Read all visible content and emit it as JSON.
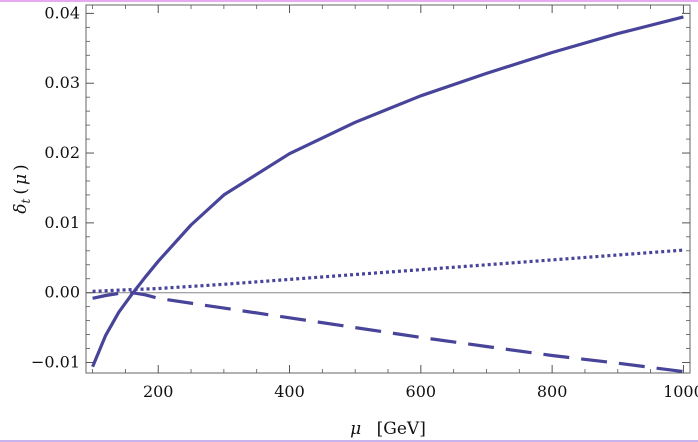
{
  "chart_data": {
    "type": "line",
    "xlabel": {
      "symbol": "μ",
      "unit": "[GeV]"
    },
    "ylabel": {
      "symbol": "δ",
      "subscript": "t",
      "open": "(",
      "arg": "μ",
      "close": ")"
    },
    "xlim": [
      90,
      1010
    ],
    "ylim": [
      -0.0115,
      0.0412
    ],
    "x_ticks": [
      200,
      400,
      600,
      800,
      1000
    ],
    "y_ticks": [
      -0.01,
      0.0,
      0.01,
      0.02,
      0.03,
      0.04
    ],
    "x_tick_labels": [
      "200",
      "400",
      "600",
      "800",
      "1000"
    ],
    "y_tick_labels": [
      "−0.01",
      "0.00",
      "0.01",
      "0.02",
      "0.03",
      "0.04"
    ],
    "grid": false,
    "legend": "none",
    "zero_line": true,
    "colors": {
      "series": "#47449a",
      "axes": "#555555",
      "zero_line": "#888888",
      "frame": "#666666"
    },
    "series": [
      {
        "style": "solid",
        "x": [
          100,
          120,
          140,
          160,
          180,
          200,
          250,
          300,
          400,
          500,
          600,
          700,
          800,
          900,
          1000
        ],
        "y": [
          -0.0106,
          -0.0061,
          -0.0028,
          -0.0002,
          0.0022,
          0.0045,
          0.0097,
          0.014,
          0.0199,
          0.0244,
          0.0282,
          0.0314,
          0.0344,
          0.0371,
          0.0395
        ]
      },
      {
        "style": "dashed",
        "x": [
          100,
          120,
          140,
          160,
          180,
          200,
          300,
          400,
          500,
          600,
          700,
          800,
          900,
          1000
        ],
        "y": [
          -0.0008,
          -0.0004,
          -0.0001,
          0.0,
          -0.0003,
          -0.0008,
          -0.0022,
          -0.0036,
          -0.005,
          -0.0064,
          -0.0077,
          -0.009,
          -0.0101,
          -0.0113
        ]
      },
      {
        "style": "dotted",
        "x": [
          100,
          200,
          300,
          400,
          500,
          600,
          700,
          800,
          900,
          1000
        ],
        "y": [
          0.0002,
          0.0006,
          0.0012,
          0.0019,
          0.0026,
          0.0033,
          0.004,
          0.0047,
          0.0054,
          0.0061
        ]
      }
    ]
  }
}
